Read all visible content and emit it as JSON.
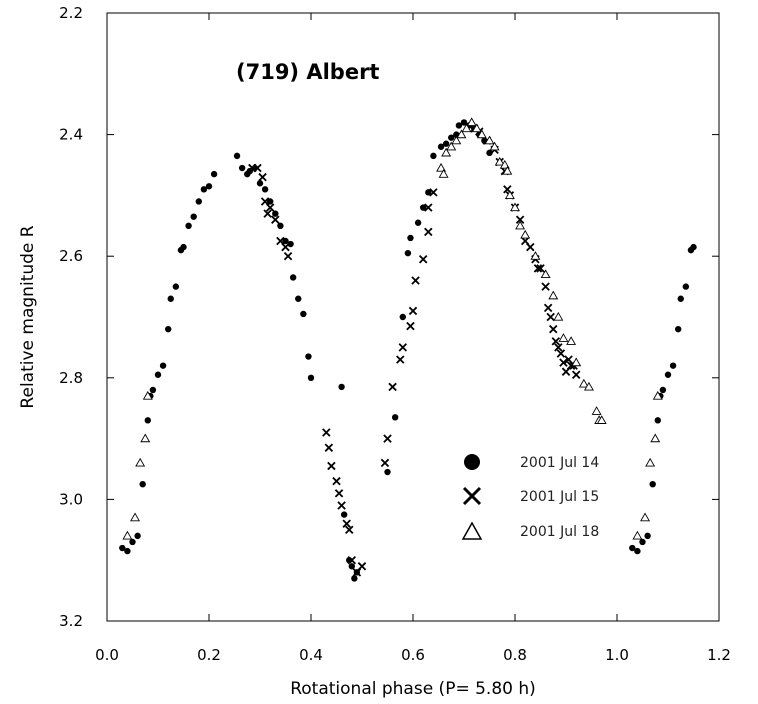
{
  "chart_data": {
    "type": "scatter",
    "title": "(719) Albert",
    "xlabel": "Rotational phase (P= 5.80 h)",
    "ylabel": "Relative magnitude R",
    "xlim": [
      0.0,
      1.2
    ],
    "ylim": [
      3.2,
      2.2
    ],
    "y_inverted": true,
    "xticks": [
      0.0,
      0.2,
      0.4,
      0.6,
      0.8,
      1.0,
      1.2
    ],
    "xtick_labels": [
      "0.0",
      "0.2",
      "0.4",
      "0.6",
      "0.8",
      "1.0",
      "1.2"
    ],
    "yticks": [
      2.2,
      2.4,
      2.6,
      2.8,
      3.0,
      3.2
    ],
    "ytick_labels": [
      "2.2",
      "2.4",
      "2.6",
      "2.8",
      "3.0",
      "3.2"
    ],
    "grid": false,
    "legend_position": "lower-right",
    "series": [
      {
        "name": "2001 Jul 14",
        "marker": "filled-circle",
        "x": [
          0.03,
          0.04,
          0.05,
          0.06,
          0.07,
          0.08,
          0.085,
          0.09,
          0.1,
          0.11,
          0.12,
          0.125,
          0.135,
          0.145,
          0.15,
          0.16,
          0.17,
          0.18,
          0.19,
          0.2,
          0.21,
          0.255,
          0.265,
          0.275,
          0.28,
          0.29,
          0.3,
          0.31,
          0.32,
          0.33,
          0.34,
          0.35,
          0.36,
          0.365,
          0.375,
          0.385,
          0.395,
          0.4,
          0.46,
          0.465,
          0.475,
          0.48,
          0.485,
          0.49,
          0.55,
          0.565,
          0.58,
          0.59,
          0.595,
          0.61,
          0.62,
          0.63,
          0.64,
          0.655,
          0.665,
          0.675,
          0.685,
          0.69,
          0.7,
          0.71,
          0.72,
          0.73,
          0.74,
          0.75,
          1.03,
          1.04,
          1.05,
          1.06,
          1.07,
          1.08,
          1.085,
          1.09,
          1.1,
          1.11,
          1.12,
          1.125,
          1.135,
          1.145,
          1.15
        ],
        "y": [
          3.08,
          3.085,
          3.07,
          3.06,
          2.975,
          2.87,
          2.83,
          2.82,
          2.795,
          2.78,
          2.72,
          2.67,
          2.65,
          2.59,
          2.585,
          2.55,
          2.535,
          2.51,
          2.49,
          2.485,
          2.465,
          2.435,
          2.455,
          2.465,
          2.46,
          2.455,
          2.48,
          2.49,
          2.51,
          2.53,
          2.55,
          2.575,
          2.58,
          2.635,
          2.67,
          2.695,
          2.765,
          2.8,
          2.815,
          3.025,
          3.1,
          3.11,
          3.13,
          3.12,
          2.955,
          2.865,
          2.7,
          2.595,
          2.57,
          2.545,
          2.52,
          2.495,
          2.435,
          2.42,
          2.415,
          2.405,
          2.4,
          2.385,
          2.38,
          2.385,
          2.39,
          2.4,
          2.41,
          2.43,
          3.08,
          3.085,
          3.07,
          3.06,
          2.975,
          2.87,
          2.83,
          2.82,
          2.795,
          2.78,
          2.72,
          2.67,
          2.65,
          2.59,
          2.585
        ]
      },
      {
        "name": "2001 Jul 15",
        "marker": "x-cross",
        "x": [
          0.285,
          0.295,
          0.305,
          0.31,
          0.315,
          0.32,
          0.33,
          0.34,
          0.35,
          0.355,
          0.43,
          0.435,
          0.44,
          0.45,
          0.455,
          0.46,
          0.47,
          0.475,
          0.48,
          0.49,
          0.5,
          0.545,
          0.55,
          0.56,
          0.575,
          0.58,
          0.595,
          0.6,
          0.605,
          0.62,
          0.63,
          0.63,
          0.64,
          0.72,
          0.73,
          0.745,
          0.76,
          0.77,
          0.78,
          0.785,
          0.79,
          0.8,
          0.81,
          0.82,
          0.83,
          0.84,
          0.845,
          0.85,
          0.86,
          0.865,
          0.87,
          0.875,
          0.88,
          0.885,
          0.89,
          0.895,
          0.9,
          0.905,
          0.91,
          0.915,
          0.92
        ],
        "y": [
          2.455,
          2.455,
          2.47,
          2.51,
          2.53,
          2.52,
          2.54,
          2.575,
          2.585,
          2.6,
          2.89,
          2.915,
          2.945,
          2.97,
          2.99,
          3.01,
          3.04,
          3.05,
          3.1,
          3.12,
          3.11,
          2.94,
          2.9,
          2.815,
          2.77,
          2.75,
          2.715,
          2.69,
          2.64,
          2.605,
          2.56,
          2.52,
          2.495,
          2.39,
          2.395,
          2.41,
          2.425,
          2.445,
          2.46,
          2.49,
          2.5,
          2.52,
          2.54,
          2.575,
          2.585,
          2.605,
          2.62,
          2.62,
          2.65,
          2.685,
          2.7,
          2.72,
          2.74,
          2.75,
          2.76,
          2.775,
          2.79,
          2.77,
          2.78,
          2.78,
          2.795
        ]
      },
      {
        "name": "2001 Jul 18",
        "marker": "open-triangle",
        "x": [
          0.04,
          0.055,
          0.065,
          0.075,
          0.08,
          0.655,
          0.66,
          0.665,
          0.675,
          0.685,
          0.695,
          0.705,
          0.715,
          0.725,
          0.735,
          0.75,
          0.76,
          0.77,
          0.78,
          0.785,
          0.79,
          0.8,
          0.81,
          0.82,
          0.84,
          0.86,
          0.875,
          0.885,
          0.895,
          0.91,
          0.92,
          0.935,
          0.945,
          0.96,
          0.965,
          0.97,
          1.04,
          1.055,
          1.065,
          1.075,
          1.08
        ],
        "y": [
          3.06,
          3.03,
          2.94,
          2.9,
          2.83,
          2.455,
          2.465,
          2.43,
          2.42,
          2.41,
          2.4,
          2.39,
          2.38,
          2.39,
          2.4,
          2.41,
          2.42,
          2.445,
          2.45,
          2.46,
          2.5,
          2.52,
          2.55,
          2.565,
          2.6,
          2.63,
          2.665,
          2.7,
          2.735,
          2.74,
          2.775,
          2.81,
          2.815,
          2.855,
          2.87,
          2.87,
          3.06,
          3.03,
          2.94,
          2.9,
          2.83
        ]
      }
    ]
  },
  "legend": {
    "items": [
      {
        "label": "2001 Jul 14",
        "marker": "filled-circle"
      },
      {
        "label": "2001 Jul 15",
        "marker": "x-cross"
      },
      {
        "label": "2001 Jul 18",
        "marker": "open-triangle"
      }
    ]
  }
}
